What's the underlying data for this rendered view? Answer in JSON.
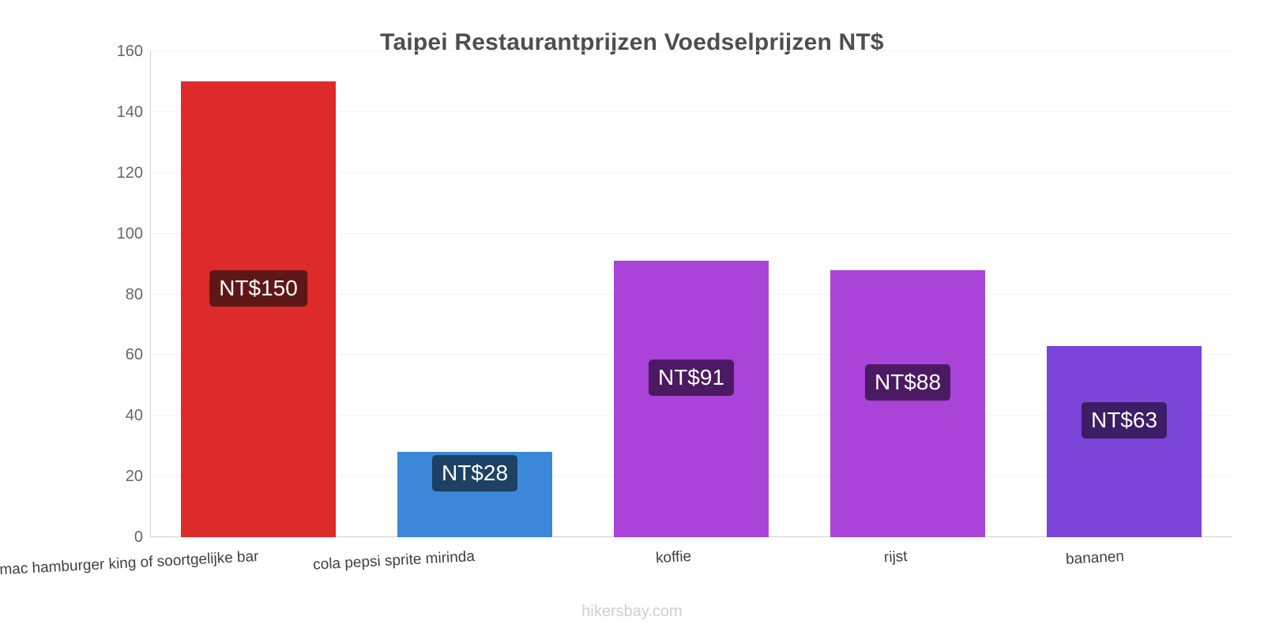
{
  "footer": "hikersbay.com",
  "chart_data": {
    "type": "bar",
    "title": "Taipei Restaurantprijzen Voedselprijzen NT$",
    "categories": [
      "mac hamburger king of soortgelijke bar",
      "cola pepsi sprite mirinda",
      "koffie",
      "rijst",
      "bananen"
    ],
    "values": [
      150,
      28,
      91,
      88,
      63
    ],
    "value_labels": [
      "NT$150",
      "NT$28",
      "NT$91",
      "NT$88",
      "NT$63"
    ],
    "bar_colors": [
      "#dd2b2b",
      "#3c87d8",
      "#aa44d8",
      "#aa44d8",
      "#7c45d9"
    ],
    "badge_colors": [
      "#5e1717",
      "#1c4164",
      "#4c1a63",
      "#4c1a63",
      "#3c1d66"
    ],
    "xlabel": "",
    "ylabel": "",
    "ylim": [
      0,
      160
    ],
    "yticks": [
      0,
      20,
      40,
      60,
      80,
      100,
      120,
      140,
      160
    ],
    "grid": "faint-horizontal",
    "legend": "none",
    "currency": "NT$"
  }
}
